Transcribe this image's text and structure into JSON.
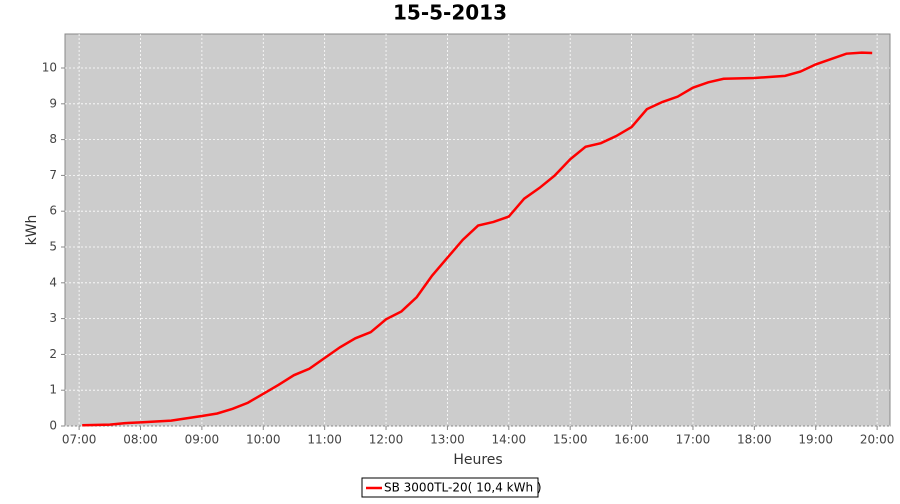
{
  "chart_data": {
    "type": "line",
    "title": "15-5-2013",
    "x_label": "Heures",
    "y_label": "kWh",
    "x": [
      7.05,
      7.5,
      7.75,
      8.0,
      8.5,
      9.0,
      9.25,
      9.5,
      9.75,
      10.0,
      10.25,
      10.5,
      10.75,
      11.0,
      11.25,
      11.5,
      11.75,
      12.0,
      12.25,
      12.5,
      12.75,
      13.0,
      13.25,
      13.5,
      13.75,
      14.0,
      14.25,
      14.5,
      14.75,
      15.0,
      15.25,
      15.5,
      15.75,
      16.0,
      16.25,
      16.5,
      16.75,
      17.0,
      17.25,
      17.5,
      18.0,
      18.5,
      18.75,
      19.0,
      19.25,
      19.5,
      19.75,
      19.92
    ],
    "series": [
      {
        "name": "SB 3000TL-20( 10,4 kWh )",
        "color": "#ff0000",
        "values": [
          0.02,
          0.04,
          0.08,
          0.1,
          0.15,
          0.28,
          0.35,
          0.48,
          0.65,
          0.9,
          1.15,
          1.42,
          1.6,
          1.9,
          2.2,
          2.45,
          2.62,
          2.98,
          3.2,
          3.6,
          4.2,
          4.7,
          5.2,
          5.6,
          5.7,
          5.85,
          6.35,
          6.65,
          7.0,
          7.45,
          7.8,
          7.9,
          8.1,
          8.35,
          8.85,
          9.05,
          9.2,
          9.45,
          9.6,
          9.7,
          9.72,
          9.78,
          9.9,
          10.1,
          10.25,
          10.4,
          10.43,
          10.42
        ]
      }
    ],
    "xlim": [
      6.77,
      20.21
    ],
    "xticks": [
      {
        "value": 7,
        "label": "07:00"
      },
      {
        "value": 8,
        "label": "08:00"
      },
      {
        "value": 9,
        "label": "09:00"
      },
      {
        "value": 10,
        "label": "10:00"
      },
      {
        "value": 11,
        "label": "11:00"
      },
      {
        "value": 12,
        "label": "12:00"
      },
      {
        "value": 13,
        "label": "13:00"
      },
      {
        "value": 14,
        "label": "14:00"
      },
      {
        "value": 15,
        "label": "15:00"
      },
      {
        "value": 16,
        "label": "16:00"
      },
      {
        "value": 17,
        "label": "17:00"
      },
      {
        "value": 18,
        "label": "18:00"
      },
      {
        "value": 19,
        "label": "19:00"
      },
      {
        "value": 20,
        "label": "20:00"
      }
    ],
    "ylim": [
      0,
      10.95
    ],
    "yticks": [
      0,
      1,
      2,
      3,
      4,
      5,
      6,
      7,
      8,
      9,
      10
    ],
    "grid": true,
    "legend": "bottom"
  }
}
